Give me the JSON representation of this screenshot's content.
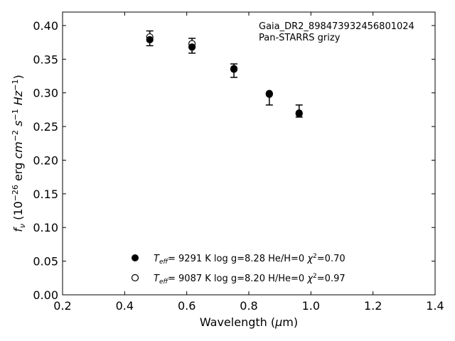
{
  "chart_data": {
    "type": "scatter",
    "xlabel_main": "Wavelength (",
    "xlabel_mu": "μ",
    "xlabel_unit": "m)",
    "ylabel": "f_ν (10^-26 erg cm^-2 s^-1 Hz^-1)",
    "xlim": [
      0.2,
      1.4
    ],
    "ylim": [
      0.0,
      0.42
    ],
    "x_ticks": [
      "0.2",
      "0.4",
      "0.6",
      "0.8",
      "1.0",
      "1.2",
      "1.4"
    ],
    "y_ticks": [
      "0.00",
      "0.05",
      "0.10",
      "0.15",
      "0.20",
      "0.25",
      "0.30",
      "0.35",
      "0.40"
    ],
    "annotation": [
      "Gaia_DR2_898473932456801024",
      "Pan-STARRS grizy"
    ],
    "observed": {
      "x": [
        0.481,
        0.617,
        0.752,
        0.866,
        0.962
      ],
      "y": [
        0.381,
        0.37,
        0.333,
        0.29,
        0.273
      ],
      "yerr": [
        0.011,
        0.011,
        0.01,
        0.008,
        0.009
      ]
    },
    "series": [
      {
        "marker": "filled",
        "legend": {
          "teff_value": "9291 K",
          "logg": "log g=8.28",
          "comp": "He/H=0",
          "chi2": "=0.70"
        },
        "x": [
          0.481,
          0.617,
          0.752,
          0.866,
          0.962
        ],
        "y": [
          0.379,
          0.368,
          0.335,
          0.298,
          0.269
        ]
      },
      {
        "marker": "open",
        "legend": {
          "teff_value": "9087 K",
          "logg": "log g=8.20",
          "comp": "H/He=0",
          "chi2": "=0.97"
        },
        "x": [
          0.481,
          0.617,
          0.752,
          0.866,
          0.962
        ],
        "y": [
          0.383,
          0.373,
          0.336,
          0.299,
          0.27
        ]
      }
    ]
  }
}
